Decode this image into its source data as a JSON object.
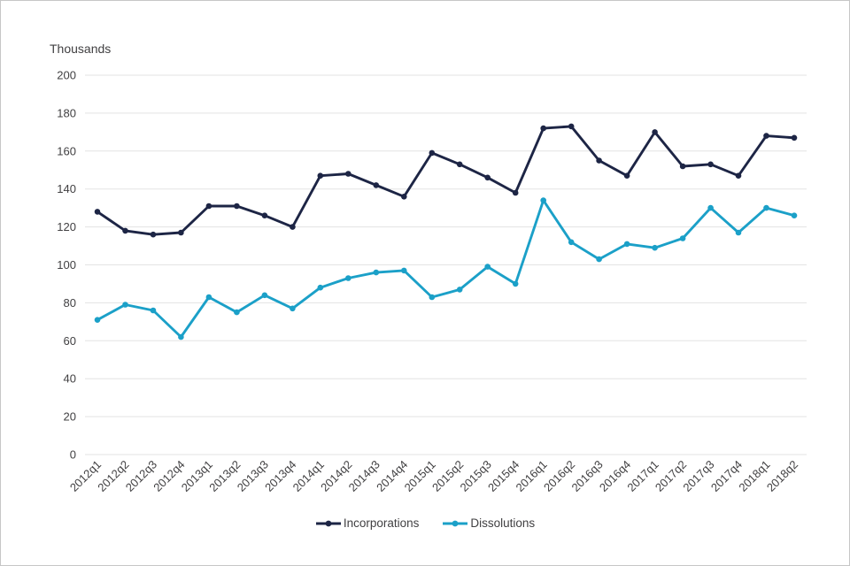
{
  "window": {
    "background": "#ffffff",
    "border_color": "#c6c6c6"
  },
  "chart_data": {
    "type": "line",
    "title": "Thousands",
    "categories": [
      "2012q1",
      "2012q2",
      "2012q3",
      "2012q4",
      "2013q1",
      "2013q2",
      "2013q3",
      "2013q4",
      "2014q1",
      "2014q2",
      "2014q3",
      "2014q4",
      "2015q1",
      "2015q2",
      "2015q3",
      "2015q4",
      "2016q1",
      "2016q2",
      "2016q3",
      "2016q4",
      "2017q1",
      "2017q2",
      "2017q3",
      "2017q4",
      "2018q1",
      "2018q2"
    ],
    "series": [
      {
        "name": "Incorporations",
        "color": "#1d2545",
        "values": [
          128,
          118,
          116,
          117,
          131,
          131,
          126,
          120,
          147,
          148,
          142,
          136,
          159,
          153,
          146,
          138,
          172,
          173,
          155,
          147,
          170,
          152,
          153,
          147,
          168,
          167
        ]
      },
      {
        "name": "Dissolutions",
        "color": "#1ba0c8",
        "values": [
          71,
          79,
          76,
          62,
          83,
          75,
          84,
          77,
          88,
          93,
          96,
          97,
          83,
          87,
          99,
          90,
          134,
          112,
          103,
          111,
          109,
          114,
          130,
          117,
          130,
          126
        ]
      }
    ],
    "ylim": [
      0,
      200
    ],
    "ytick_step": 20,
    "grid": true,
    "legend_position": "bottom",
    "axis_text_color": "#414042",
    "gridline_color": "#e3e3e3"
  }
}
